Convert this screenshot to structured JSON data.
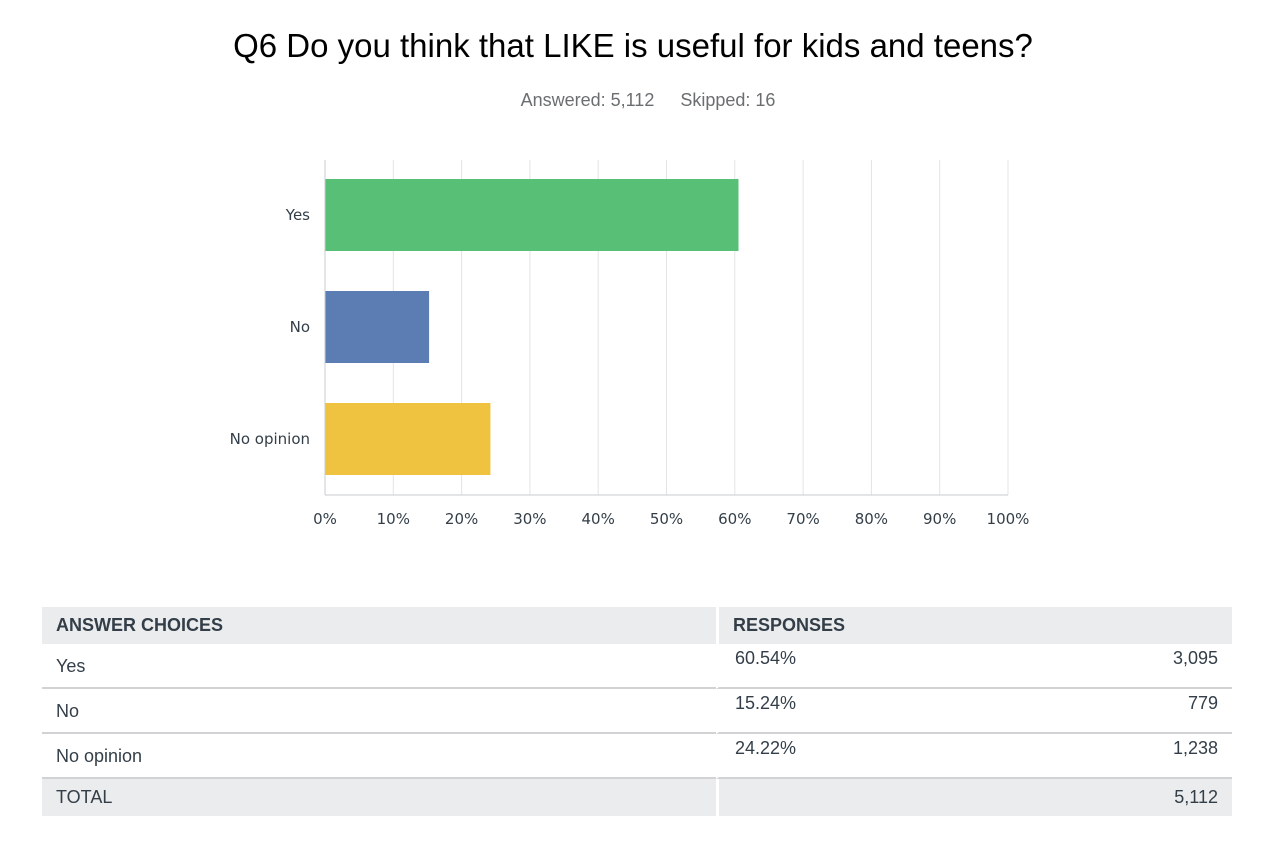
{
  "question": {
    "title": "Q6 Do you think that LIKE is useful for kids and teens?",
    "answered": "Answered: 5,112",
    "skipped": "Skipped: 16"
  },
  "chart_data": {
    "type": "bar",
    "orientation": "horizontal",
    "categories": [
      "Yes",
      "No",
      "No opinion"
    ],
    "values": [
      60.54,
      15.24,
      24.22
    ],
    "colors": [
      "#57bf76",
      "#5b7db3",
      "#efc240"
    ],
    "xlim": [
      0,
      100
    ],
    "x_ticks": [
      "0%",
      "10%",
      "20%",
      "30%",
      "40%",
      "50%",
      "60%",
      "70%",
      "80%",
      "90%",
      "100%"
    ],
    "grid": true
  },
  "table": {
    "headers": {
      "choices": "ANSWER CHOICES",
      "responses": "RESPONSES"
    },
    "rows": [
      {
        "choice": "Yes",
        "percent": "60.54%",
        "count": "3,095"
      },
      {
        "choice": "No",
        "percent": "15.24%",
        "count": "779"
      },
      {
        "choice": "No opinion",
        "percent": "24.22%",
        "count": "1,238"
      }
    ],
    "total": {
      "label": "TOTAL",
      "count": "5,112"
    }
  }
}
